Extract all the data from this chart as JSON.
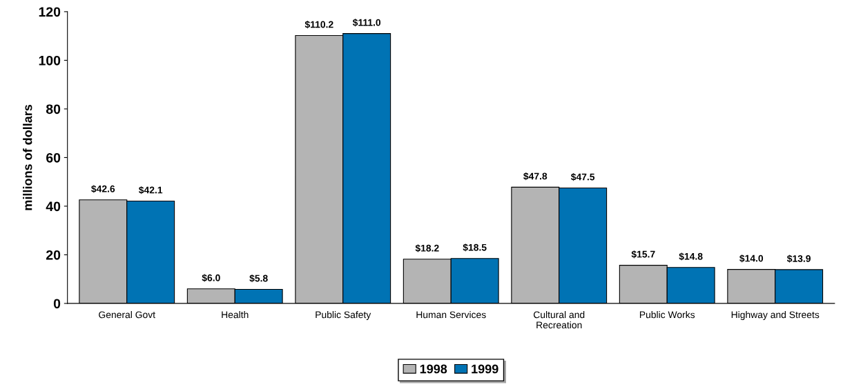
{
  "chart_data": {
    "type": "bar",
    "ylabel": "millions of dollars",
    "categories": [
      "General Govt",
      "Health",
      "Public Safety",
      "Human Services",
      "Cultural and\nRecreation",
      "Public Works",
      "Highway and Streets"
    ],
    "series": [
      {
        "name": "1998",
        "color": "#b4b4b4",
        "values": [
          42.6,
          6.0,
          110.2,
          18.2,
          47.8,
          15.7,
          14.0
        ],
        "value_labels": [
          "$42.6",
          "$6.0",
          "$110.2",
          "$18.2",
          "$47.8",
          "$15.7",
          "$14.0"
        ]
      },
      {
        "name": "1999",
        "color": "#0073b4",
        "values": [
          42.1,
          5.8,
          111.0,
          18.5,
          47.5,
          14.8,
          13.9
        ],
        "value_labels": [
          "$42.1",
          "$5.8",
          "$111.0",
          "$18.5",
          "$47.5",
          "$14.8",
          "$13.9"
        ]
      }
    ],
    "ylim": [
      0,
      120
    ],
    "yticks": [
      0,
      20,
      40,
      60,
      80,
      100,
      120
    ],
    "grid": false,
    "legend": "bottom"
  }
}
